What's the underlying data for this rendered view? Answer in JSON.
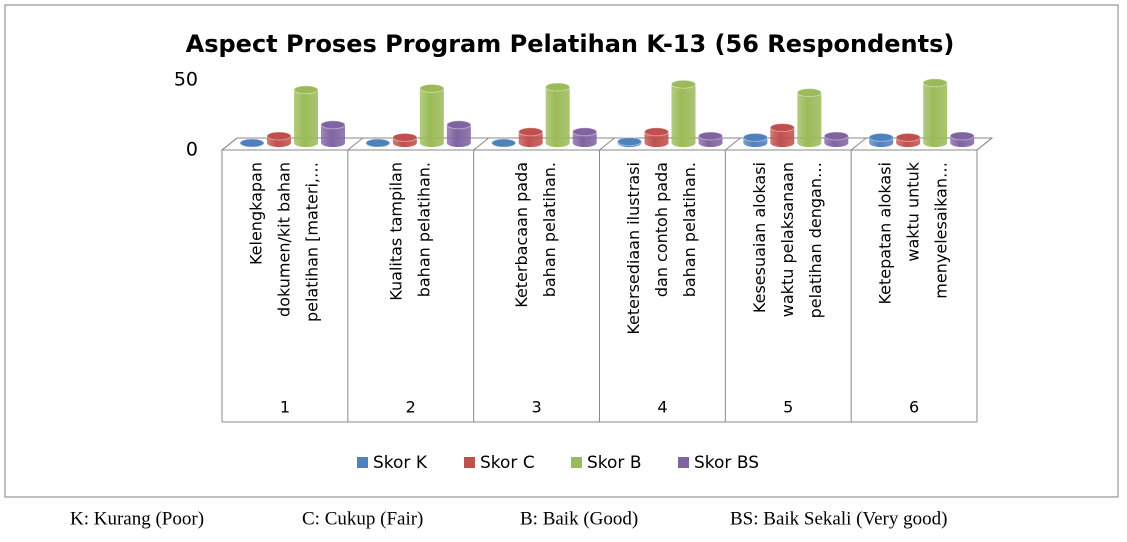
{
  "chart_data": {
    "type": "bar3d",
    "title": "Aspect Proses Program Pelatihan K-13 (56 Respondents)",
    "categories": [
      "1",
      "2",
      "3",
      "4",
      "5",
      "6"
    ],
    "category_descriptions": [
      [
        "Kelengkapan",
        "dokumen/kit bahan",
        "pelatihan [materi,…"
      ],
      [
        "Kualitas tampilan",
        "bahan pelatihan."
      ],
      [
        "Keterbacaan pada",
        "bahan pelatihan."
      ],
      [
        "Ketersediaan ilustrasi",
        "dan contoh pada",
        "bahan pelatihan."
      ],
      [
        "Kesesuaian alokasi",
        "waktu pelaksanaan",
        "pelatihan dengan…"
      ],
      [
        "Ketepatan alokasi",
        "waktu untuk",
        "menyelesaikan…"
      ]
    ],
    "series": [
      {
        "name": "Skor K",
        "color": "#4f81bd",
        "values": [
          0,
          0,
          0,
          1,
          4,
          4
        ]
      },
      {
        "name": "Skor C",
        "color": "#c0504d",
        "values": [
          5,
          4,
          8,
          8,
          11,
          4
        ]
      },
      {
        "name": "Skor B",
        "color": "#9bbb59",
        "values": [
          38,
          39,
          40,
          42,
          36,
          43
        ]
      },
      {
        "name": "Skor BS",
        "color": "#8064a2",
        "values": [
          13,
          13,
          8,
          5,
          5,
          5
        ]
      }
    ],
    "ylim": [
      0,
      50
    ],
    "yticks": [
      0,
      50
    ],
    "legend": "bottom",
    "footnote": [
      "K: Kurang (Poor)",
      "C: Cukup (Fair)",
      "B: Baik (Good)",
      "BS: Baik Sekali (Very good)"
    ]
  }
}
